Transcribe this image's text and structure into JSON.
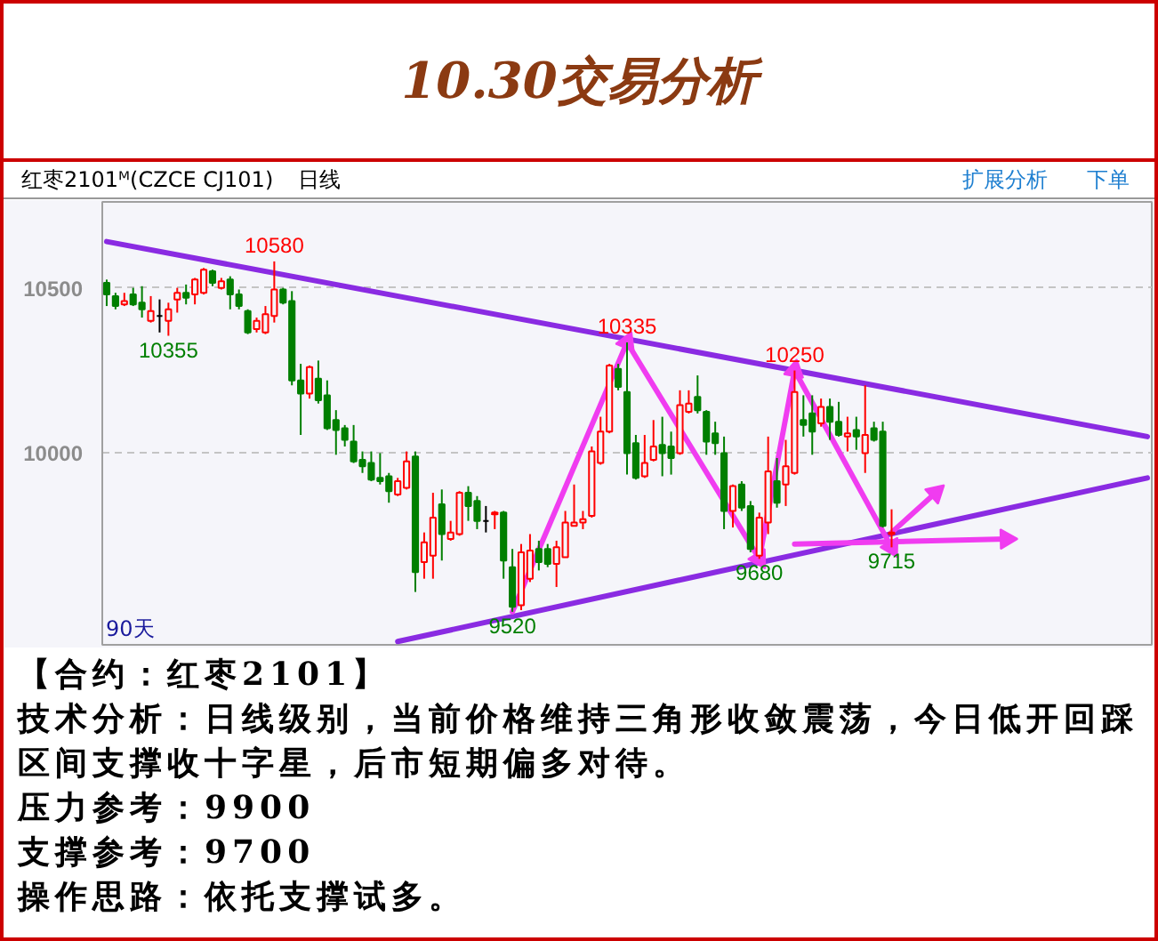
{
  "chart_data": {
    "type": "candlestick",
    "title": "10.30交易分析",
    "subtitle": "红枣2101ᴹ(CZCE CJ101)",
    "categories": [
      null,
      null,
      null,
      null,
      null,
      null,
      null,
      null,
      null,
      null,
      null,
      null,
      null,
      null,
      null,
      null,
      null,
      null,
      null,
      null,
      null,
      null,
      null,
      null,
      null,
      null,
      null,
      null,
      null,
      null,
      null,
      null,
      null,
      null,
      null,
      null,
      null,
      null,
      null,
      null,
      null,
      null,
      null,
      null,
      null,
      null,
      null,
      null,
      null,
      null,
      null,
      null,
      null,
      null,
      null,
      null,
      null,
      null,
      null,
      null,
      null,
      null,
      null,
      null,
      null,
      null,
      null,
      null,
      null,
      null,
      null,
      null,
      null,
      null,
      null,
      null,
      null,
      null,
      null,
      null,
      null,
      null,
      null,
      null,
      null,
      null,
      null,
      null,
      null,
      null,
      null,
      null,
      null,
      null,
      null,
      null,
      null,
      null,
      null,
      null,
      null,
      null,
      null,
      null,
      null,
      null,
      null,
      null,
      null,
      null,
      null,
      null,
      null,
      null,
      null,
      null,
      null,
      null,
      null
    ],
    "ohlc": [
      [
        10515,
        10525,
        10445,
        10480
      ],
      [
        10475,
        10485,
        10435,
        10445
      ],
      [
        10450,
        10485,
        10445,
        10460
      ],
      [
        10480,
        10500,
        10445,
        10450
      ],
      [
        10455,
        10505,
        10410,
        10435
      ],
      [
        10400,
        10475,
        10395,
        10430
      ],
      [
        10415,
        10465,
        10365,
        10415
      ],
      [
        10400,
        10455,
        10355,
        10435
      ],
      [
        10465,
        10500,
        10425,
        10485
      ],
      [
        10485,
        10510,
        10450,
        10470
      ],
      [
        10480,
        10530,
        10450,
        10525
      ],
      [
        10485,
        10560,
        10480,
        10555
      ],
      [
        10550,
        10555,
        10505,
        10515
      ],
      [
        10500,
        10530,
        10495,
        10520
      ],
      [
        10525,
        10535,
        10435,
        10480
      ],
      [
        10480,
        10495,
        10435,
        10445
      ],
      [
        10430,
        10435,
        10360,
        10365
      ],
      [
        10375,
        10410,
        10365,
        10400
      ],
      [
        10365,
        10445,
        10360,
        10420
      ],
      [
        10415,
        10580,
        10395,
        10495
      ],
      [
        10495,
        10500,
        10450,
        10455
      ],
      [
        10460,
        10490,
        10205,
        10220
      ],
      [
        10220,
        10270,
        10055,
        10180
      ],
      [
        10180,
        10265,
        10165,
        10260
      ],
      [
        10225,
        10280,
        10150,
        10160
      ],
      [
        10175,
        10220,
        10070,
        10075
      ],
      [
        10100,
        10130,
        9995,
        10070
      ],
      [
        10075,
        10085,
        10020,
        10040
      ],
      [
        10035,
        10085,
        9970,
        9975
      ],
      [
        9980,
        10005,
        9940,
        9960
      ],
      [
        9970,
        10005,
        9915,
        9920
      ],
      [
        9925,
        10000,
        9905,
        9915
      ],
      [
        9930,
        9940,
        9850,
        9885
      ],
      [
        9875,
        9925,
        9870,
        9915
      ],
      [
        9895,
        10005,
        9890,
        9975
      ],
      [
        9990,
        10005,
        9580,
        9640
      ],
      [
        9670,
        9760,
        9620,
        9730
      ],
      [
        9690,
        9880,
        9620,
        9805
      ],
      [
        9845,
        9890,
        9675,
        9755
      ],
      [
        9740,
        9795,
        9735,
        9760
      ],
      [
        9755,
        9885,
        9750,
        9880
      ],
      [
        9880,
        9900,
        9795,
        9840
      ],
      [
        9855,
        9870,
        9770,
        9795
      ],
      [
        9795,
        9840,
        9760,
        9795
      ],
      [
        9815,
        9825,
        9770,
        9820
      ],
      [
        9820,
        9825,
        9620,
        9675
      ],
      [
        9655,
        9710,
        9520,
        9535
      ],
      [
        9540,
        9725,
        9525,
        9700
      ],
      [
        9620,
        9755,
        9610,
        9705
      ],
      [
        9710,
        9735,
        9645,
        9670
      ],
      [
        9710,
        9725,
        9655,
        9665
      ],
      [
        9665,
        9735,
        9595,
        9715
      ],
      [
        9685,
        9825,
        9685,
        9790
      ],
      [
        9780,
        9905,
        9780,
        9790
      ],
      [
        9790,
        9825,
        9770,
        9800
      ],
      [
        9810,
        10020,
        9805,
        10005
      ],
      [
        9970,
        10110,
        9965,
        10065
      ],
      [
        10065,
        10270,
        10060,
        10265
      ],
      [
        10255,
        10270,
        10190,
        10200
      ],
      [
        10185,
        10335,
        9935,
        10000
      ],
      [
        10030,
        10055,
        9920,
        9925
      ],
      [
        9930,
        10055,
        9925,
        9970
      ],
      [
        9980,
        10100,
        9975,
        10020
      ],
      [
        10025,
        10110,
        9930,
        10000
      ],
      [
        10020,
        10065,
        9935,
        9985
      ],
      [
        10000,
        10190,
        9995,
        10145
      ],
      [
        10125,
        10190,
        10120,
        10150
      ],
      [
        10170,
        10235,
        10120,
        10130
      ],
      [
        10125,
        10130,
        9995,
        10035
      ],
      [
        10060,
        10095,
        9995,
        10030
      ],
      [
        10000,
        10050,
        9770,
        9825
      ],
      [
        9825,
        9905,
        9775,
        9900
      ],
      [
        9905,
        9915,
        9825,
        9835
      ],
      [
        9840,
        9855,
        9700,
        9710
      ],
      [
        9690,
        9820,
        9680,
        9805
      ],
      [
        9790,
        10050,
        9755,
        9945
      ],
      [
        9915,
        9985,
        9835,
        9850
      ],
      [
        9905,
        10040,
        9840,
        9960
      ],
      [
        9940,
        10250,
        9935,
        10185
      ],
      [
        10100,
        10175,
        10050,
        10085
      ],
      [
        10120,
        10175,
        9995,
        10065
      ],
      [
        10090,
        10165,
        10080,
        10140
      ],
      [
        10140,
        10165,
        10040,
        10095
      ],
      [
        10095,
        10155,
        10050,
        10055
      ],
      [
        10050,
        10110,
        10005,
        10060
      ],
      [
        10070,
        10110,
        10010,
        10050
      ],
      [
        10000,
        10205,
        9940,
        10055
      ],
      [
        10075,
        10095,
        10035,
        10040
      ],
      [
        10065,
        10095,
        9775,
        9780
      ],
      [
        9755,
        9830,
        9715,
        9760
      ],
      null,
      null,
      null,
      null,
      null,
      null,
      null,
      null,
      null,
      null,
      null,
      null,
      null,
      null,
      null,
      null,
      null,
      null,
      null,
      null,
      null,
      null,
      null,
      null,
      null,
      null,
      null,
      null,
      null
    ],
    "colors": [
      "#007f00",
      "#007f00",
      "#ff0000",
      "#007f00",
      "#007f00",
      "#ff0000",
      "#000000",
      "#ff0000",
      "#ff0000",
      "#007f00",
      "#ff0000",
      "#ff0000",
      "#007f00",
      "#ff0000",
      "#007f00",
      "#007f00",
      "#007f00",
      "#ff0000",
      "#ff0000",
      "#ff0000",
      "#007f00",
      "#007f00",
      "#007f00",
      "#ff0000",
      "#007f00",
      "#007f00",
      "#007f00",
      "#007f00",
      "#007f00",
      "#007f00",
      "#007f00",
      "#007f00",
      "#007f00",
      "#ff0000",
      "#ff0000",
      "#007f00",
      "#ff0000",
      "#ff0000",
      "#007f00",
      "#ff0000",
      "#ff0000",
      "#007f00",
      "#007f00",
      "#000000",
      "#ff0000",
      "#007f00",
      "#007f00",
      "#ff0000",
      "#ff0000",
      "#007f00",
      "#007f00",
      "#ff0000",
      "#ff0000",
      "#ff0000",
      "#ff0000",
      "#ff0000",
      "#ff0000",
      "#ff0000",
      "#007f00",
      "#007f00",
      "#007f00",
      "#ff0000",
      "#ff0000",
      "#007f00",
      "#007f00",
      "#ff0000",
      "#ff0000",
      "#007f00",
      "#007f00",
      "#007f00",
      "#007f00",
      "#ff0000",
      "#007f00",
      "#007f00",
      "#ff0000",
      "#ff0000",
      "#007f00",
      "#ff0000",
      "#ff0000",
      "#007f00",
      "#007f00",
      "#ff0000",
      "#007f00",
      "#007f00",
      "#ff0000",
      "#007f00",
      "#ff0000",
      "#007f00",
      "#007f00",
      "#ff0000",
      null,
      null,
      null,
      null,
      null,
      null,
      null,
      null,
      null,
      null,
      null,
      null,
      null,
      null,
      null,
      null,
      null,
      null,
      null,
      null,
      null,
      null,
      null,
      null,
      null,
      null,
      null,
      null,
      null
    ],
    "series": [
      {
        "type": "line",
        "color": "#8a2be2",
        "values": [
          10640,
          null,
          null,
          null,
          null,
          null,
          null,
          null,
          null,
          null,
          null,
          null,
          null,
          null,
          null,
          null,
          null,
          null,
          null,
          null,
          null,
          null,
          null,
          null,
          null,
          null,
          null,
          null,
          null,
          null,
          null,
          null,
          null,
          null,
          null,
          null,
          null,
          null,
          null,
          null,
          null,
          null,
          null,
          null,
          null,
          null,
          null,
          null,
          null,
          null,
          null,
          null,
          null,
          null,
          null,
          null,
          null,
          null,
          null,
          null,
          null,
          null,
          null,
          null,
          null,
          null,
          null,
          null,
          null,
          null,
          null,
          null,
          null,
          null,
          null,
          null,
          null,
          null,
          null,
          null,
          null,
          null,
          null,
          null,
          null,
          null,
          null,
          null,
          null,
          null,
          null,
          null,
          null,
          null,
          null,
          null,
          null,
          null,
          null,
          null,
          null,
          null,
          null,
          null,
          null,
          null,
          null,
          null,
          null,
          null,
          null,
          null,
          null,
          null,
          null,
          null,
          null,
          null,
          10050
        ]
      },
      {
        "type": "line",
        "color": "#8a2be2",
        "values": [
          null,
          null,
          null,
          null,
          null,
          null,
          null,
          null,
          null,
          null,
          null,
          null,
          null,
          null,
          null,
          null,
          null,
          null,
          null,
          null,
          null,
          null,
          null,
          null,
          null,
          null,
          null,
          null,
          null,
          null,
          null,
          null,
          null,
          9430,
          null,
          null,
          null,
          null,
          null,
          null,
          null,
          null,
          null,
          null,
          null,
          null,
          null,
          null,
          null,
          null,
          null,
          null,
          null,
          null,
          null,
          null,
          null,
          null,
          null,
          null,
          null,
          null,
          null,
          null,
          null,
          null,
          null,
          null,
          null,
          null,
          null,
          null,
          null,
          null,
          null,
          null,
          null,
          null,
          null,
          null,
          null,
          null,
          null,
          null,
          null,
          null,
          null,
          null,
          null,
          null,
          null,
          null,
          null,
          null,
          null,
          null,
          null,
          null,
          null,
          null,
          null,
          null,
          null,
          null,
          null,
          null,
          null,
          null,
          null,
          null,
          null,
          null,
          null,
          null,
          null,
          null,
          null,
          null,
          9925
        ]
      },
      {
        "type": "line",
        "color": "#f03cf0",
        "marker": "triangle",
        "values": [
          null,
          null,
          null,
          null,
          null,
          null,
          null,
          null,
          null,
          null,
          null,
          null,
          null,
          null,
          null,
          null,
          null,
          null,
          null,
          null,
          null,
          null,
          null,
          null,
          null,
          null,
          null,
          null,
          null,
          null,
          null,
          null,
          null,
          null,
          null,
          null,
          null,
          null,
          null,
          null,
          null,
          null,
          null,
          null,
          null,
          null,
          9520,
          null,
          null,
          null,
          null,
          null,
          null,
          null,
          null,
          null,
          null,
          null,
          null,
          10335,
          null,
          null,
          null,
          null,
          null,
          null,
          null,
          null,
          null,
          null,
          null,
          null,
          null,
          null,
          9680,
          null,
          null,
          null,
          10250,
          null,
          null,
          null,
          null,
          null,
          null,
          null,
          null,
          null,
          null,
          9715,
          null,
          null,
          null,
          null,
          null,
          null,
          null,
          null,
          null,
          null,
          null,
          null,
          null,
          null,
          null,
          null,
          null,
          null,
          null,
          null,
          null,
          null,
          null,
          null,
          null,
          null,
          null,
          null,
          null
        ]
      },
      {
        "type": "line",
        "color": "#f03cf0",
        "marker": "triangle",
        "values": [
          null,
          null,
          null,
          null,
          null,
          null,
          null,
          null,
          null,
          null,
          null,
          null,
          null,
          null,
          null,
          null,
          null,
          null,
          null,
          null,
          null,
          null,
          null,
          null,
          null,
          null,
          null,
          null,
          null,
          null,
          null,
          null,
          null,
          null,
          null,
          null,
          null,
          null,
          null,
          null,
          null,
          null,
          null,
          null,
          null,
          null,
          null,
          null,
          null,
          null,
          null,
          null,
          null,
          null,
          null,
          null,
          null,
          null,
          null,
          null,
          null,
          null,
          null,
          null,
          null,
          null,
          null,
          null,
          null,
          null,
          null,
          null,
          null,
          null,
          null,
          null,
          null,
          null,
          null,
          null,
          null,
          null,
          null,
          null,
          null,
          null,
          null,
          null,
          null,
          9760,
          null,
          null,
          null,
          null,
          9880,
          null,
          null,
          null,
          null,
          null,
          null,
          null,
          null,
          null,
          null,
          null,
          null,
          null,
          null,
          null,
          null,
          null,
          null,
          null,
          null,
          null,
          null,
          null,
          null
        ]
      },
      {
        "type": "line",
        "color": "#f03cf0",
        "marker": "triangle",
        "values": [
          null,
          null,
          null,
          null,
          null,
          null,
          null,
          null,
          null,
          null,
          null,
          null,
          null,
          null,
          null,
          null,
          null,
          null,
          null,
          null,
          null,
          null,
          null,
          null,
          null,
          null,
          null,
          null,
          null,
          null,
          null,
          null,
          null,
          null,
          null,
          null,
          null,
          null,
          null,
          null,
          null,
          null,
          null,
          null,
          null,
          null,
          null,
          null,
          null,
          null,
          null,
          null,
          null,
          null,
          null,
          null,
          null,
          null,
          null,
          null,
          null,
          null,
          null,
          null,
          null,
          null,
          null,
          null,
          null,
          null,
          null,
          null,
          null,
          null,
          null,
          null,
          null,
          null,
          9725,
          null,
          null,
          null,
          null,
          null,
          null,
          null,
          null,
          null,
          null,
          null,
          null,
          null,
          null,
          null,
          null,
          null,
          null,
          null,
          null,
          null,
          null,
          null,
          9740,
          null,
          null,
          null,
          null,
          null,
          null,
          null,
          null,
          null,
          null,
          null,
          null,
          null,
          null,
          null,
          null
        ]
      }
    ],
    "ylim": [
      9420,
      10760
    ],
    "yticks": [
      10000,
      10500
    ],
    "grid": "y",
    "tick_labels": "y",
    "annotations": [
      "日线",
      "扩展分析",
      "下单",
      "90天",
      "【合约：红枣2101】",
      "技术分析：日线级别，当前价格维持三角形收敛震荡，今日低开回踩区间支撑收十字星，后市短期偏多对待。",
      "压力参考：9900",
      "支撑参考：9700",
      "操作思路：依托支撑试多。",
      {
        "text": "10580",
        "y": 10580
      },
      {
        "text": "10355",
        "y": 10355
      },
      {
        "text": "9520",
        "y": 9520
      },
      {
        "text": "10335",
        "y": 10335
      },
      {
        "text": "9680",
        "y": 9680
      },
      {
        "text": "10250",
        "y": 10250
      },
      {
        "text": "9715",
        "y": 9715
      }
    ]
  }
}
